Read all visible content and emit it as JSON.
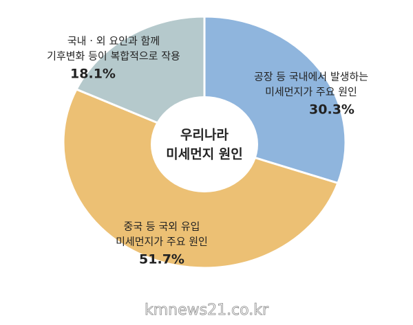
{
  "chart_data": {
    "type": "donut",
    "center_text": [
      "우리나라",
      "미세먼지 원인"
    ],
    "categories": [
      [
        "공장 등 국내에서 발생하는",
        "미세먼지가 주요 원인"
      ],
      [
        "중국 등 국외 유입",
        "미세먼지가 주요 원인"
      ],
      [
        "국내 · 외 요인과 함께",
        "기후변화 등이 복합적으로 작용"
      ]
    ],
    "values": [
      30.3,
      51.7,
      18.1
    ],
    "value_labels": [
      "30.3%",
      "51.7%",
      "18.1%"
    ],
    "colors": [
      "#8fb5dd",
      "#ecc074",
      "#b5c9cc"
    ],
    "watermark": "kmnews21.co.kr"
  }
}
